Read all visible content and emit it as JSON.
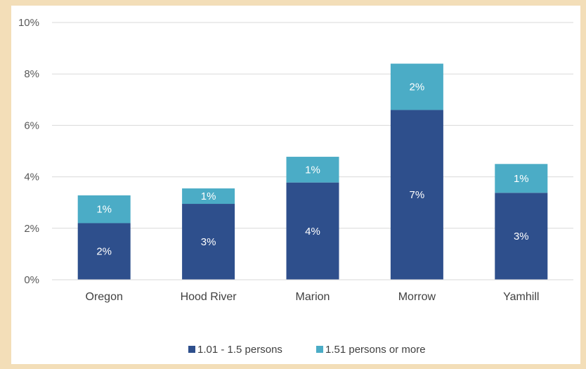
{
  "chart_data": {
    "type": "bar",
    "stacked": true,
    "categories": [
      "Oregon",
      "Hood River",
      "Marion",
      "Morrow",
      "Yamhill"
    ],
    "series": [
      {
        "name": "1.01 - 1.5 persons",
        "values": [
          2.2,
          2.95,
          3.78,
          6.6,
          3.38
        ],
        "labels": [
          "2%",
          "3%",
          "4%",
          "7%",
          "3%"
        ],
        "color": "#2e4f8c"
      },
      {
        "name": "1.51 persons or more",
        "values": [
          1.08,
          0.6,
          1.0,
          1.8,
          1.12
        ],
        "labels": [
          "1%",
          "1%",
          "1%",
          "2%",
          "1%"
        ],
        "color": "#4bacc6"
      }
    ],
    "y_ticks": [
      "0%",
      "2%",
      "4%",
      "6%",
      "8%",
      "10%"
    ],
    "ylim": [
      0,
      10
    ],
    "grid": true,
    "legend_position": "bottom"
  }
}
